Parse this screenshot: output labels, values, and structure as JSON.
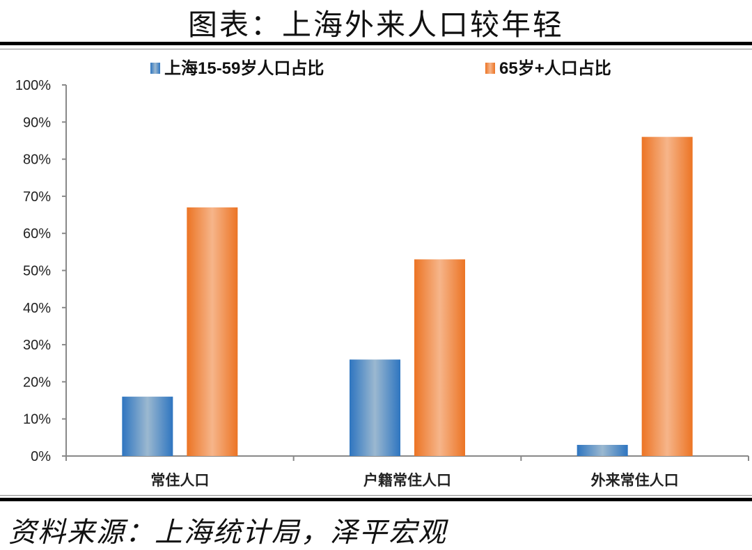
{
  "title": "图表：上海外来人口较年轻",
  "source": "资料来源：上海统计局，泽平宏观",
  "chart_data": {
    "type": "bar",
    "categories": [
      "常住人口",
      "户籍常住人口",
      "外来常住人口"
    ],
    "series": [
      {
        "name": "上海15-59岁人口占比",
        "values": [
          16,
          26,
          3
        ],
        "color": "#3b7fc4"
      },
      {
        "name": "65岁+人口占比",
        "values": [
          67,
          53,
          86
        ],
        "color": "#ed7d31"
      }
    ],
    "ylim": [
      0,
      100
    ],
    "yticks": [
      0,
      10,
      20,
      30,
      40,
      50,
      60,
      70,
      80,
      90,
      100
    ],
    "ytick_format": "%",
    "legend_position": "top",
    "grid": false
  }
}
